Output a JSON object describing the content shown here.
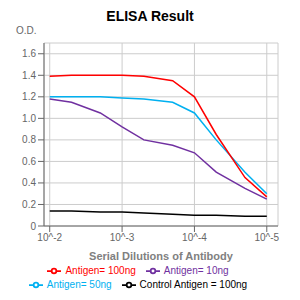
{
  "chart_data": {
    "type": "line",
    "title": "ELISA Result",
    "y_label": "O.D.",
    "x_label": "Serial Dilutions of Antibody",
    "log": "x",
    "xlim": [
      0.012,
      7e-06
    ],
    "xticks": [
      {
        "value": 0.01,
        "label": "10^-2"
      },
      {
        "value": 0.001,
        "label": "10^-3"
      },
      {
        "value": 0.0001,
        "label": "10^-4"
      },
      {
        "value": 1e-05,
        "label": "10^-5"
      }
    ],
    "ylim": [
      0,
      1.7
    ],
    "yticks": [
      0,
      0.2,
      0.4,
      0.6,
      0.8,
      {
        "value": 1.0,
        "label": "1.0"
      },
      1.2,
      1.4,
      1.6
    ],
    "grid": true,
    "legend": "bottom",
    "x": [
      0.01,
      0.005,
      0.002,
      0.001,
      0.0005,
      0.0002,
      0.0001,
      5e-05,
      2e-05,
      1e-05
    ],
    "series": [
      {
        "name": "Control Antigen = 100ng",
        "color": "#000000",
        "values": [
          0.14,
          0.14,
          0.13,
          0.13,
          0.12,
          0.11,
          0.1,
          0.1,
          0.09,
          0.09
        ]
      },
      {
        "name": "Antigen= 10ng",
        "color": "#7030A0",
        "values": [
          1.18,
          1.15,
          1.05,
          0.92,
          0.8,
          0.75,
          0.68,
          0.5,
          0.35,
          0.25
        ]
      },
      {
        "name": "Antigen= 50ng",
        "color": "#00B0F0",
        "values": [
          1.2,
          1.2,
          1.2,
          1.19,
          1.18,
          1.15,
          1.05,
          0.8,
          0.5,
          0.3
        ]
      },
      {
        "name": "Antigen= 100ng",
        "color": "#FF0000",
        "values": [
          1.39,
          1.4,
          1.4,
          1.4,
          1.39,
          1.35,
          1.2,
          0.85,
          0.45,
          0.27
        ]
      }
    ]
  }
}
